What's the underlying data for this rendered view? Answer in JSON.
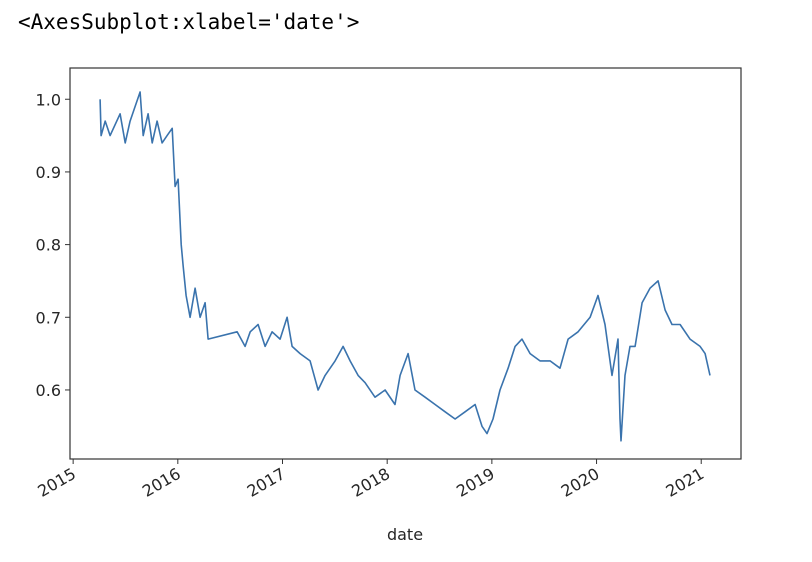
{
  "output_repr": "<AxesSubplot:xlabel='date'>",
  "chart_data": {
    "type": "line",
    "xlabel": "date",
    "xlim": [
      2014.97,
      2021.38
    ],
    "xticks": [
      2015,
      2016,
      2017,
      2018,
      2019,
      2020,
      2021
    ],
    "ylim": [
      0.505,
      1.043
    ],
    "yticks": [
      0.6,
      0.7,
      0.8,
      0.9,
      {
        "value": 1,
        "label": "1.0"
      }
    ],
    "grid": false,
    "series": [
      {
        "color": "#3a73ad",
        "x": [
          2015.258,
          2015.267,
          2015.306,
          2015.353,
          2015.449,
          2015.497,
          2015.544,
          2015.592,
          2015.64,
          2015.669,
          2015.716,
          2015.755,
          2015.802,
          2015.85,
          2015.898,
          2015.946,
          2015.974,
          2016.003,
          2016.032,
          2016.051,
          2016.079,
          2016.117,
          2016.165,
          2016.213,
          2016.261,
          2016.289,
          2016.566,
          2016.643,
          2016.691,
          2016.767,
          2016.834,
          2016.901,
          2016.977,
          2017.044,
          2017.092,
          2017.168,
          2017.264,
          2017.34,
          2017.407,
          2017.502,
          2017.579,
          2017.646,
          2017.722,
          2017.789,
          2017.884,
          2017.98,
          2018.075,
          2018.123,
          2018.2,
          2018.266,
          2018.362,
          2018.458,
          2018.553,
          2018.649,
          2018.744,
          2018.84,
          2018.906,
          2018.954,
          2019.011,
          2019.078,
          2019.155,
          2019.222,
          2019.288,
          2019.365,
          2019.46,
          2019.556,
          2019.651,
          2019.728,
          2019.824,
          2019.938,
          2020.014,
          2020.081,
          2020.148,
          2020.205,
          2020.224,
          2020.234,
          2020.272,
          2020.32,
          2020.368,
          2020.435,
          2020.511,
          2020.588,
          2020.655,
          2020.721,
          2020.798,
          2020.893,
          2020.989,
          2021.037,
          2021.084
        ],
        "values": [
          1.0,
          0.95,
          0.97,
          0.95,
          0.98,
          0.94,
          0.97,
          0.99,
          1.01,
          0.95,
          0.98,
          0.94,
          0.97,
          0.94,
          0.95,
          0.96,
          0.88,
          0.89,
          0.8,
          0.77,
          0.73,
          0.7,
          0.74,
          0.7,
          0.72,
          0.67,
          0.68,
          0.66,
          0.68,
          0.69,
          0.66,
          0.68,
          0.67,
          0.7,
          0.66,
          0.65,
          0.64,
          0.6,
          0.62,
          0.64,
          0.66,
          0.64,
          0.62,
          0.61,
          0.59,
          0.6,
          0.58,
          0.62,
          0.65,
          0.6,
          0.59,
          0.58,
          0.57,
          0.56,
          0.57,
          0.58,
          0.55,
          0.54,
          0.56,
          0.6,
          0.63,
          0.66,
          0.67,
          0.65,
          0.64,
          0.64,
          0.63,
          0.67,
          0.68,
          0.7,
          0.73,
          0.69,
          0.62,
          0.67,
          0.56,
          0.53,
          0.62,
          0.66,
          0.66,
          0.72,
          0.74,
          0.75,
          0.71,
          0.69,
          0.69,
          0.67,
          0.66,
          0.65,
          0.62
        ]
      }
    ]
  }
}
